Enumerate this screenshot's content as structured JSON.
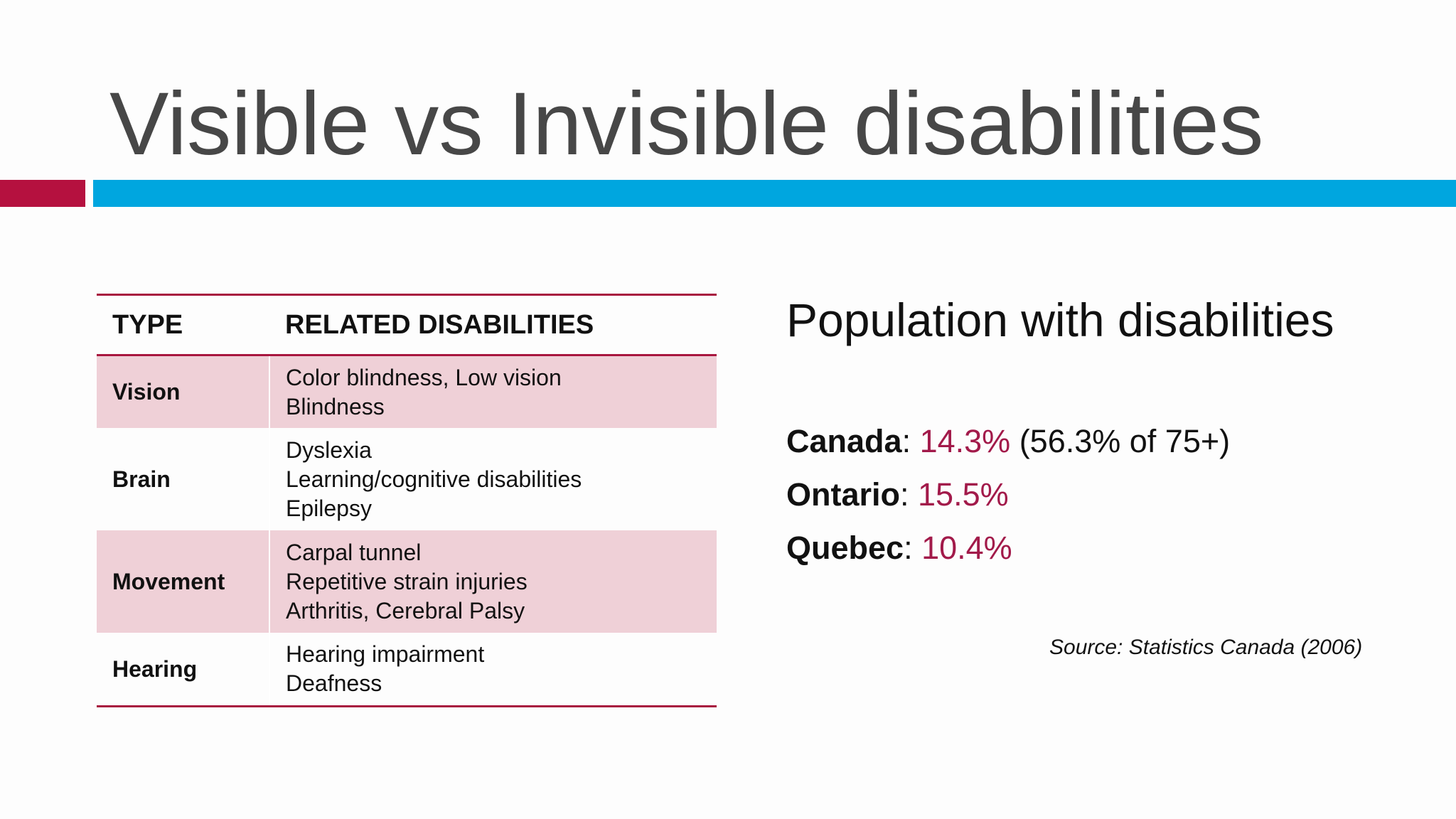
{
  "slide": {
    "title": "Visible vs Invisible disabilities"
  },
  "colors": {
    "accent_red": "#b5113f",
    "accent_blue": "#00a6df",
    "row_shade": "#efd0d7",
    "value_color": "#a21a4a"
  },
  "table": {
    "headers": [
      "TYPE",
      "RELATED DISABILITIES"
    ],
    "rows": [
      {
        "type": "Vision",
        "related": [
          "Color blindness, Low vision",
          "Blindness"
        ]
      },
      {
        "type": "Brain",
        "related": [
          "Dyslexia",
          "Learning/cognitive disabilities",
          "Epilepsy"
        ]
      },
      {
        "type": "Movement",
        "related": [
          "Carpal tunnel",
          "Repetitive strain injuries",
          "Arthritis, Cerebral Palsy"
        ]
      },
      {
        "type": "Hearing",
        "related": [
          "Hearing impairment",
          "Deafness"
        ]
      }
    ]
  },
  "population": {
    "heading": "Population with disabilities",
    "stats": [
      {
        "region": "Canada",
        "separator": ": ",
        "value": "14.3%",
        "extra": " (56.3% of 75+)"
      },
      {
        "region": "Ontario",
        "separator": ": ",
        "value": "15.5%",
        "extra": ""
      },
      {
        "region": "Quebec",
        "separator": ": ",
        "value": "10.4%",
        "extra": ""
      }
    ],
    "source": "Source: Statistics Canada (2006)"
  }
}
